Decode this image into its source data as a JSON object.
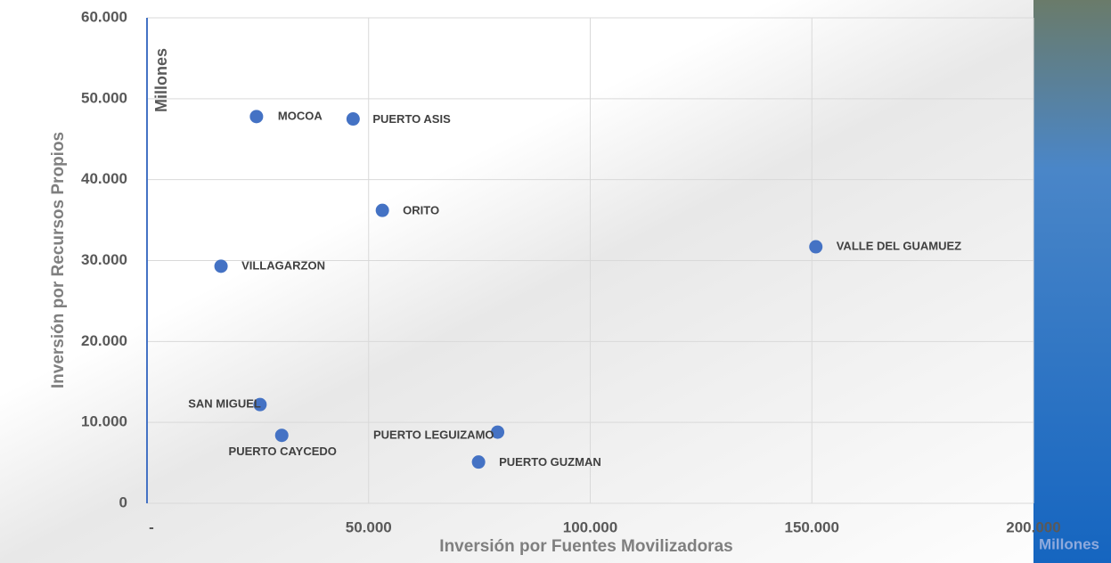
{
  "chart_data": {
    "type": "scatter",
    "x_label": "Inversión por Fuentes Movilizadoras",
    "y_label": "Inversión por Recursos Propios",
    "x_unit": "Millones",
    "y_unit": "Millones",
    "color": "#4472c4",
    "grid": true,
    "xlim": [
      0,
      200000
    ],
    "ylim": [
      0,
      60000
    ],
    "xticks": [
      {
        "value": 0,
        "label": "-"
      },
      {
        "value": 50000,
        "label": "50.000"
      },
      {
        "value": 100000,
        "label": "100.000"
      },
      {
        "value": 150000,
        "label": "150.000"
      },
      {
        "value": 200000,
        "label": "200.000"
      }
    ],
    "yticks": [
      0,
      {
        "value": 10000,
        "label": "10.000"
      },
      {
        "value": 20000,
        "label": "20.000"
      },
      {
        "value": 30000,
        "label": "30.000"
      },
      {
        "value": 40000,
        "label": "40.000"
      },
      {
        "value": 50000,
        "label": "50.000"
      },
      {
        "value": 60000,
        "label": "60.000"
      }
    ],
    "labels": [
      "MOCOA",
      "PUERTO ASIS",
      "ORITO",
      "VALLE DEL GUAMUEZ",
      "VILLAGARZON",
      "SAN MIGUEL",
      "PUERTO CAYCEDO",
      "PUERTO LEGUIZAMO",
      "PUERTO GUZMAN"
    ],
    "x": [
      24700,
      46500,
      53100,
      150900,
      16700,
      25500,
      30400,
      79100,
      74800
    ],
    "values": [
      47800,
      47500,
      36200,
      31700,
      29300,
      12200,
      8400,
      8800,
      5100
    ]
  }
}
